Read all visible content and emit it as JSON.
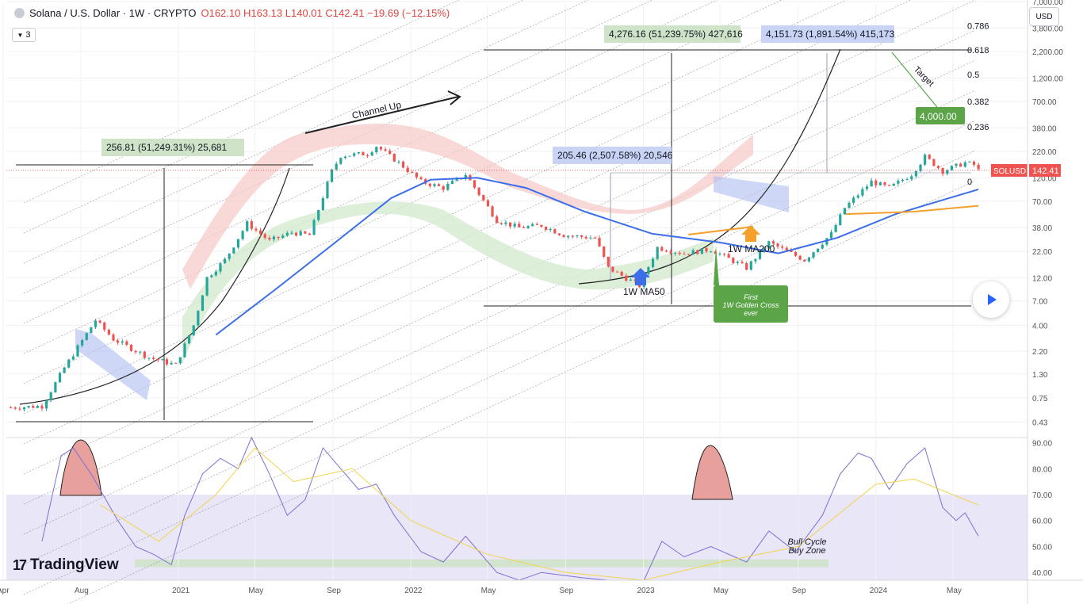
{
  "header": {
    "symbol_title": "Solana / U.S. Dollar · 1W · CRYPTO",
    "open": "O162.10",
    "high": "H163.13",
    "low": "L140.01",
    "close": "C142.41",
    "change": "−19.69 (−12.15%)",
    "indicator_count": "3"
  },
  "currency_button": "USD",
  "logo_text": "TradingView",
  "colors": {
    "up": "#26a69a",
    "down": "#ef5350",
    "ma50": "#3b6ee8",
    "ma200": "#f4a02b",
    "rsi": "#7e6fd4",
    "rsi_ma": "#f2d44b",
    "target_box": "#5ba548"
  },
  "chart_data": [
    {
      "type": "line",
      "title": "Solana / U.S. Dollar · 1W · CRYPTO",
      "y_scale": "log",
      "ylim": [
        0.3,
        6500
      ],
      "xlim": [
        "2020-04-06",
        "2024-08-26"
      ],
      "x_tick_labels": [
        {
          "label": "Apr",
          "date": "2020-04-01"
        },
        {
          "label": "Aug",
          "date": "2020-08-01"
        },
        {
          "label": "2021",
          "date": "2021-01-01"
        },
        {
          "label": "May",
          "date": "2021-05-01"
        },
        {
          "label": "Sep",
          "date": "2021-09-01"
        },
        {
          "label": "2022",
          "date": "2022-01-01"
        },
        {
          "label": "May",
          "date": "2022-05-01"
        },
        {
          "label": "Sep",
          "date": "2022-09-01"
        },
        {
          "label": "2023",
          "date": "2023-01-01"
        },
        {
          "label": "May",
          "date": "2023-05-01"
        },
        {
          "label": "Sep",
          "date": "2023-09-01"
        },
        {
          "label": "2024",
          "date": "2024-01-01"
        },
        {
          "label": "May",
          "date": "2024-05-01"
        }
      ],
      "y_tick_labels": [
        "7,000.00",
        "3,800.00",
        "2,200.00",
        "1,200.00",
        "700.00",
        "380.00",
        "220.00",
        "120.00",
        "70.00",
        "38.00",
        "22.00",
        "12.00",
        "7.00",
        "4.00",
        "2.20",
        "1.30",
        "0.75",
        "0.43"
      ],
      "current_price": {
        "label": "SOLUSD",
        "value": "142.41",
        "y": 142.41
      },
      "series": [
        {
          "style": "candles",
          "keypoints": [
            {
              "x": "2020-04-13",
              "y": 0.6
            },
            {
              "x": "2020-06-01",
              "y": 0.62
            },
            {
              "x": "2020-07-06",
              "y": 1.5
            },
            {
              "x": "2020-08-24",
              "y": 4.5
            },
            {
              "x": "2020-09-21",
              "y": 2.9
            },
            {
              "x": "2020-11-16",
              "y": 1.9
            },
            {
              "x": "2020-12-28",
              "y": 1.6
            },
            {
              "x": "2021-01-25",
              "y": 4.0
            },
            {
              "x": "2021-02-15",
              "y": 12
            },
            {
              "x": "2021-03-15",
              "y": 18
            },
            {
              "x": "2021-04-19",
              "y": 42
            },
            {
              "x": "2021-05-24",
              "y": 28
            },
            {
              "x": "2021-06-28",
              "y": 34
            },
            {
              "x": "2021-07-26",
              "y": 32
            },
            {
              "x": "2021-08-30",
              "y": 140
            },
            {
              "x": "2021-09-13",
              "y": 200
            },
            {
              "x": "2021-10-25",
              "y": 210
            },
            {
              "x": "2021-11-08",
              "y": 250
            },
            {
              "x": "2021-12-13",
              "y": 170
            },
            {
              "x": "2022-01-17",
              "y": 110
            },
            {
              "x": "2022-02-21",
              "y": 95
            },
            {
              "x": "2022-03-28",
              "y": 130
            },
            {
              "x": "2022-05-16",
              "y": 45
            },
            {
              "x": "2022-06-20",
              "y": 38
            },
            {
              "x": "2022-07-25",
              "y": 40
            },
            {
              "x": "2022-08-29",
              "y": 32
            },
            {
              "x": "2022-10-17",
              "y": 30
            },
            {
              "x": "2022-11-07",
              "y": 15
            },
            {
              "x": "2022-12-26",
              "y": 9.96
            },
            {
              "x": "2023-01-23",
              "y": 24
            },
            {
              "x": "2023-03-06",
              "y": 21
            },
            {
              "x": "2023-04-17",
              "y": 23
            },
            {
              "x": "2023-06-12",
              "y": 15
            },
            {
              "x": "2023-07-17",
              "y": 27
            },
            {
              "x": "2023-09-11",
              "y": 18
            },
            {
              "x": "2023-10-23",
              "y": 33
            },
            {
              "x": "2023-11-13",
              "y": 60
            },
            {
              "x": "2023-12-25",
              "y": 110
            },
            {
              "x": "2024-01-22",
              "y": 95
            },
            {
              "x": "2024-02-26",
              "y": 130
            },
            {
              "x": "2024-03-18",
              "y": 195
            },
            {
              "x": "2024-04-15",
              "y": 140
            },
            {
              "x": "2024-05-20",
              "y": 170
            },
            {
              "x": "2024-06-03",
              "y": 162
            },
            {
              "x": "2024-06-10",
              "y": 142.41
            }
          ]
        },
        {
          "name": "1W MA50",
          "keypoints": [
            {
              "x": "2021-03-01",
              "y": 3.2
            },
            {
              "x": "2021-06-01",
              "y": 9
            },
            {
              "x": "2021-09-01",
              "y": 26
            },
            {
              "x": "2021-12-01",
              "y": 75
            },
            {
              "x": "2022-02-01",
              "y": 115
            },
            {
              "x": "2022-04-15",
              "y": 120
            },
            {
              "x": "2022-07-01",
              "y": 95
            },
            {
              "x": "2022-10-01",
              "y": 55
            },
            {
              "x": "2023-01-15",
              "y": 33
            },
            {
              "x": "2023-05-01",
              "y": 27
            },
            {
              "x": "2023-08-01",
              "y": 21
            },
            {
              "x": "2023-11-01",
              "y": 30
            },
            {
              "x": "2024-02-01",
              "y": 52
            },
            {
              "x": "2024-04-15",
              "y": 72
            },
            {
              "x": "2024-06-10",
              "y": 92
            }
          ]
        },
        {
          "name": "1W MA200",
          "keypoints": [
            {
              "x": "2023-11-15",
              "y": 52
            },
            {
              "x": "2024-03-01",
              "y": 55
            },
            {
              "x": "2024-06-10",
              "y": 63
            }
          ]
        }
      ],
      "annotations": [
        {
          "text": "256.81 (51,249.31%) 25,681"
        },
        {
          "text": "205.46 (2,507.58%) 20,546"
        },
        {
          "text": "4,276.16 (51,239.75%) 427,616"
        },
        {
          "text": "4,151.73 (1,891.54%) 415,173"
        },
        {
          "text": "Channel Up"
        },
        {
          "text": "Target"
        },
        {
          "text": "4,000.00"
        },
        {
          "text": "1W MA50"
        },
        {
          "text": "1W MA200"
        },
        {
          "text": "First 1W Golden Cross ever"
        }
      ],
      "fib_levels": [
        {
          "label": "0.786",
          "y": 4000
        },
        {
          "label": "0.618",
          "y": 2300
        },
        {
          "label": "0.5",
          "y": 1300
        },
        {
          "label": "0.382",
          "y": 700
        },
        {
          "label": "0.236",
          "y": 390
        },
        {
          "label": "0",
          "y": 110
        }
      ]
    },
    {
      "type": "line",
      "ylim": [
        37,
        92
      ],
      "y_tick_labels": [
        "90.00",
        "80.00",
        "70.00",
        "60.00",
        "50.00",
        "40.00"
      ],
      "series": [
        {
          "name": "RSI",
          "keypoints": [
            {
              "x": "2020-06-01",
              "y": 52
            },
            {
              "x": "2020-07-01",
              "y": 85
            },
            {
              "x": "2020-07-20",
              "y": 88
            },
            {
              "x": "2020-08-17",
              "y": 78
            },
            {
              "x": "2020-09-28",
              "y": 60
            },
            {
              "x": "2020-10-26",
              "y": 50
            },
            {
              "x": "2020-11-23",
              "y": 47
            },
            {
              "x": "2020-12-21",
              "y": 43
            },
            {
              "x": "2021-01-11",
              "y": 62
            },
            {
              "x": "2021-02-08",
              "y": 78
            },
            {
              "x": "2021-03-08",
              "y": 84
            },
            {
              "x": "2021-04-05",
              "y": 80
            },
            {
              "x": "2021-04-26",
              "y": 92
            },
            {
              "x": "2021-05-24",
              "y": 78
            },
            {
              "x": "2021-06-21",
              "y": 62
            },
            {
              "x": "2021-07-19",
              "y": 68
            },
            {
              "x": "2021-08-16",
              "y": 88
            },
            {
              "x": "2021-09-13",
              "y": 80
            },
            {
              "x": "2021-10-11",
              "y": 72
            },
            {
              "x": "2021-11-08",
              "y": 74
            },
            {
              "x": "2021-12-06",
              "y": 62
            },
            {
              "x": "2022-01-17",
              "y": 48
            },
            {
              "x": "2022-02-21",
              "y": 44
            },
            {
              "x": "2022-03-28",
              "y": 54
            },
            {
              "x": "2022-05-16",
              "y": 40
            },
            {
              "x": "2022-06-20",
              "y": 37
            },
            {
              "x": "2022-07-25",
              "y": 40
            },
            {
              "x": "2022-09-26",
              "y": 38
            },
            {
              "x": "2022-11-07",
              "y": 37
            },
            {
              "x": "2023-01-02",
              "y": 37
            },
            {
              "x": "2023-01-30",
              "y": 52
            },
            {
              "x": "2023-03-06",
              "y": 46
            },
            {
              "x": "2023-04-17",
              "y": 50
            },
            {
              "x": "2023-06-12",
              "y": 44
            },
            {
              "x": "2023-07-17",
              "y": 56
            },
            {
              "x": "2023-08-28",
              "y": 48
            },
            {
              "x": "2023-10-09",
              "y": 62
            },
            {
              "x": "2023-11-06",
              "y": 78
            },
            {
              "x": "2023-12-04",
              "y": 86
            },
            {
              "x": "2023-12-25",
              "y": 84
            },
            {
              "x": "2024-01-22",
              "y": 72
            },
            {
              "x": "2024-02-19",
              "y": 82
            },
            {
              "x": "2024-03-18",
              "y": 88
            },
            {
              "x": "2024-04-15",
              "y": 65
            },
            {
              "x": "2024-05-06",
              "y": 60
            },
            {
              "x": "2024-05-20",
              "y": 63
            },
            {
              "x": "2024-06-10",
              "y": 54
            }
          ]
        },
        {
          "name": "RSI MA",
          "keypoints": [
            {
              "x": "2020-09-01",
              "y": 66
            },
            {
              "x": "2020-12-01",
              "y": 52
            },
            {
              "x": "2021-03-01",
              "y": 70
            },
            {
              "x": "2021-05-01",
              "y": 88
            },
            {
              "x": "2021-07-01",
              "y": 75
            },
            {
              "x": "2021-10-01",
              "y": 80
            },
            {
              "x": "2022-01-01",
              "y": 60
            },
            {
              "x": "2022-05-01",
              "y": 47
            },
            {
              "x": "2022-09-01",
              "y": 40
            },
            {
              "x": "2023-01-01",
              "y": 37
            },
            {
              "x": "2023-05-01",
              "y": 44
            },
            {
              "x": "2023-09-01",
              "y": 50
            },
            {
              "x": "2024-01-01",
              "y": 74
            },
            {
              "x": "2024-03-01",
              "y": 76
            },
            {
              "x": "2024-06-10",
              "y": 66
            }
          ]
        }
      ],
      "annotations": [
        {
          "text": "Bull Cycle"
        },
        {
          "text": "Buy Zone"
        }
      ]
    }
  ]
}
